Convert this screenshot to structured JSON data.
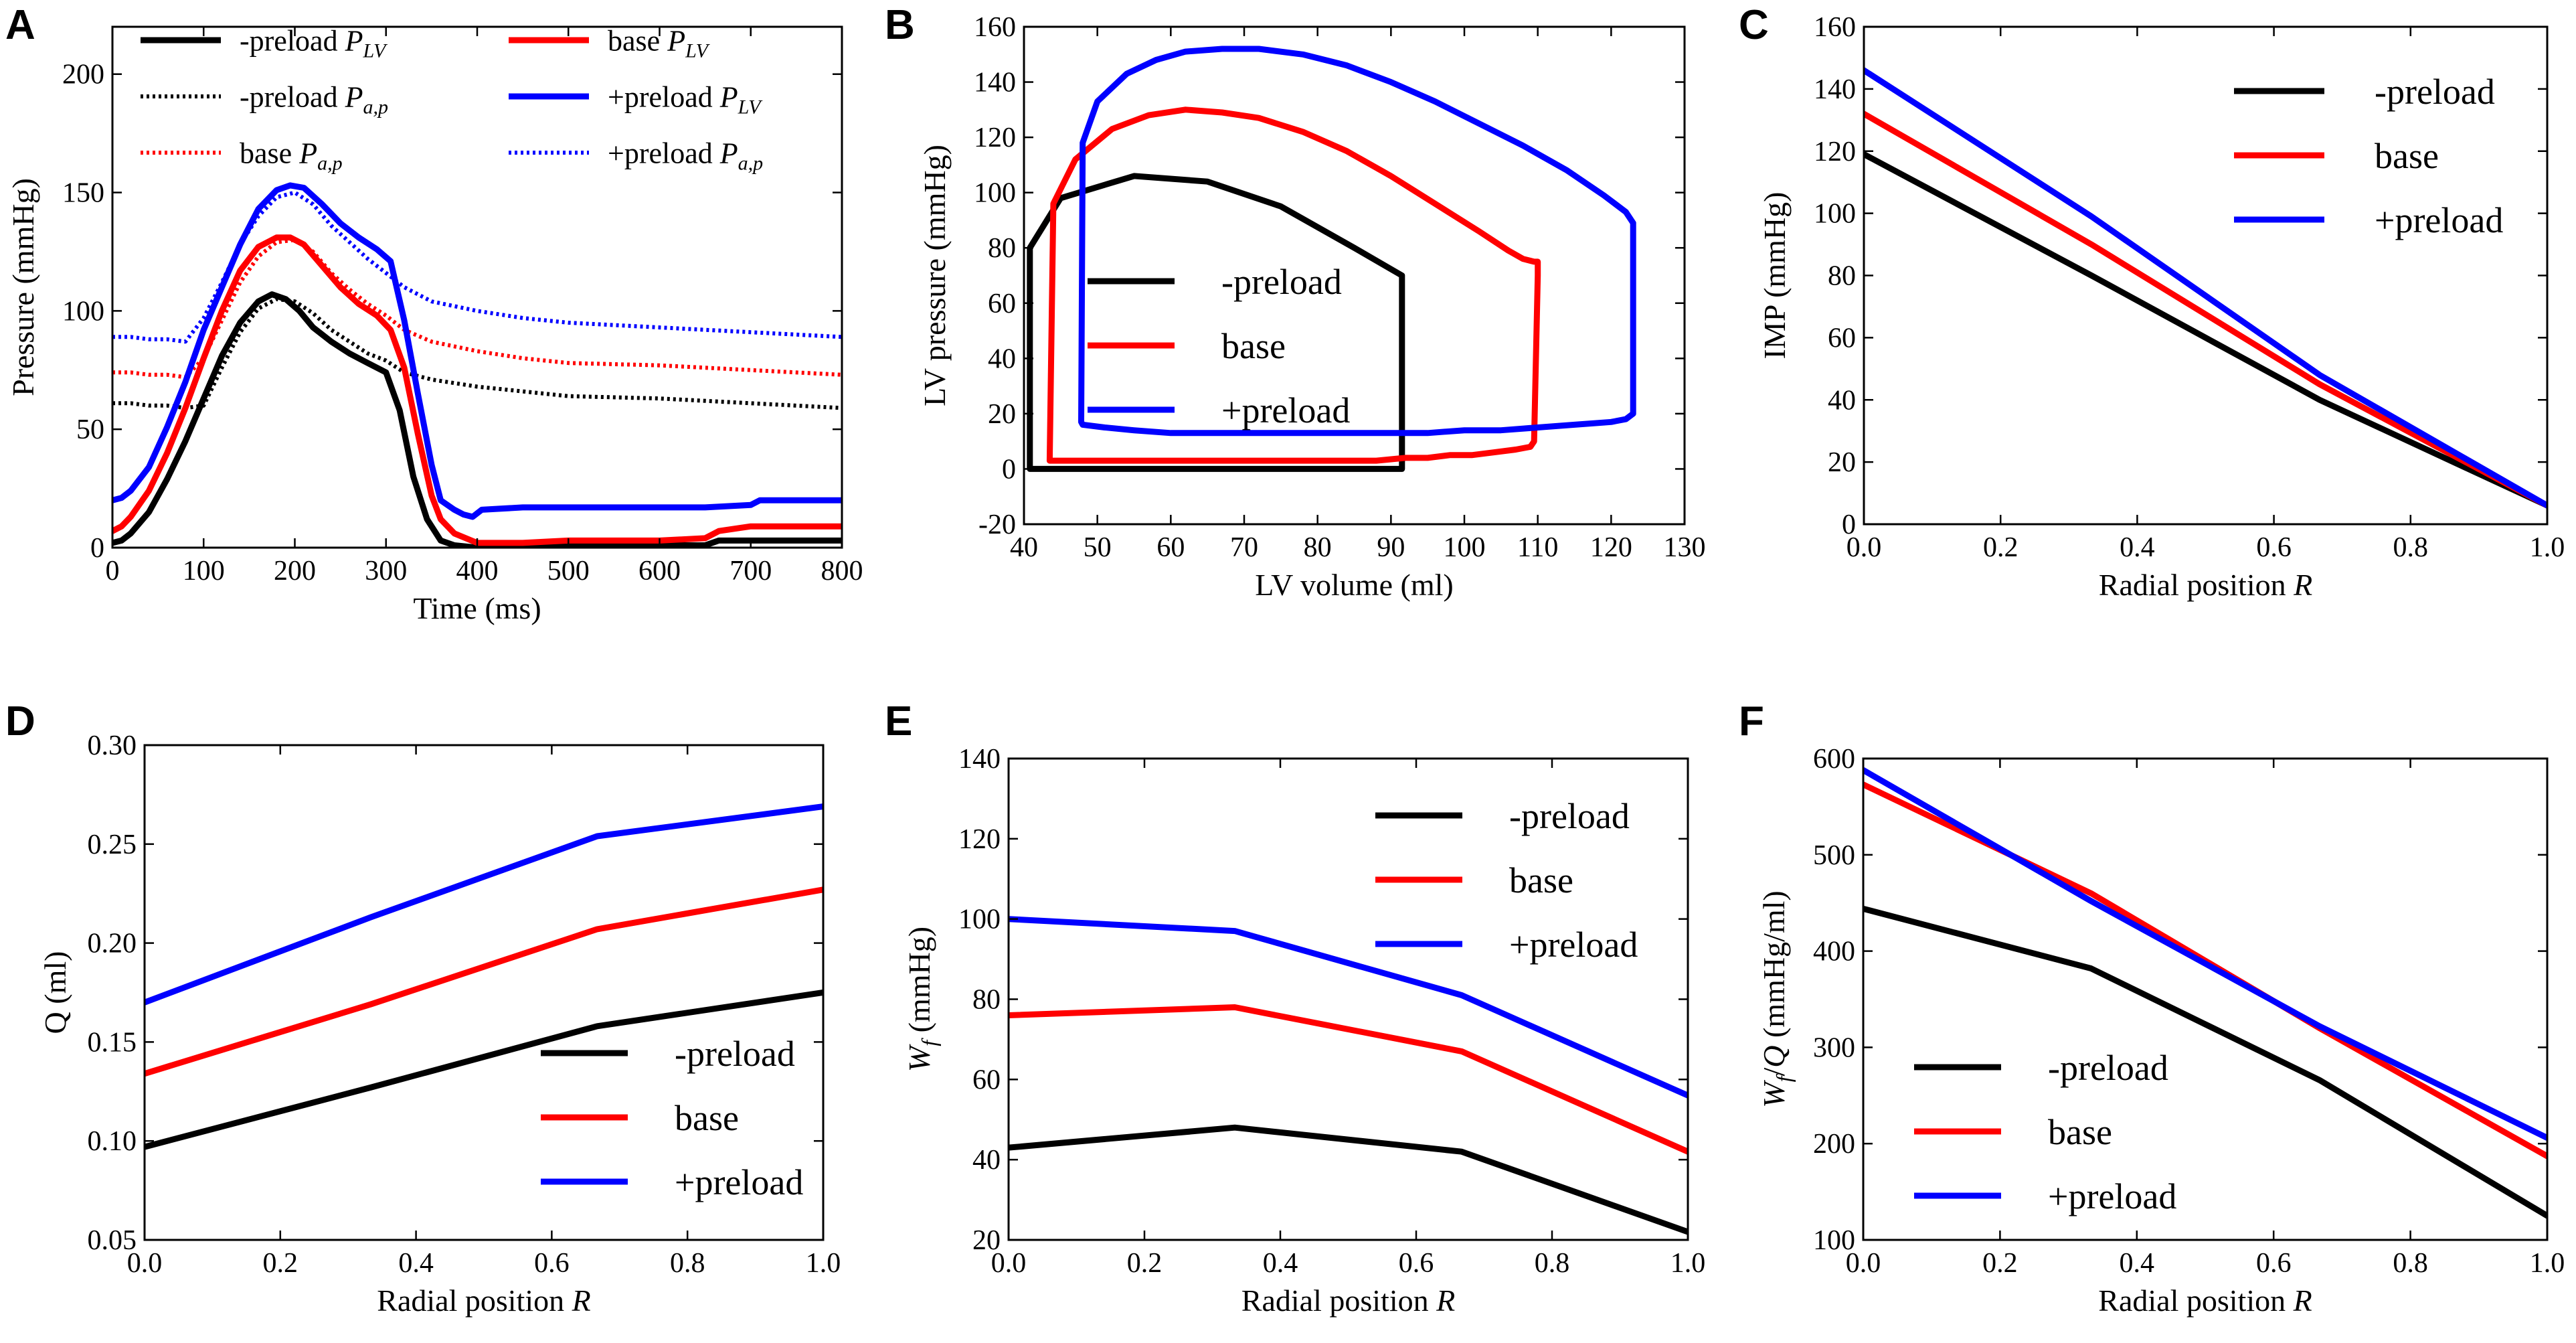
{
  "colors": {
    "black": "#000000",
    "red": "#ff0000",
    "blue": "#0000ff"
  },
  "chart_data": [
    {
      "id": "A",
      "label": "A",
      "type": "line",
      "xlabel": "Time (ms)",
      "ylabel": "Pressure (mmHg)",
      "xlim": [
        0,
        800
      ],
      "ylim": [
        0,
        220
      ],
      "xticks": [
        0,
        100,
        200,
        300,
        400,
        500,
        600,
        700,
        800
      ],
      "yticks": [
        0,
        50,
        100,
        150,
        200
      ],
      "legend_position": "top",
      "legend_columns": 2,
      "series": [
        {
          "name": "-preload P_LV",
          "legend_text": "-preload ",
          "legend_sym": "P",
          "legend_sub": "LV",
          "color": "#000000",
          "dash": "solid",
          "x": [
            0,
            10,
            20,
            40,
            60,
            80,
            100,
            120,
            140,
            160,
            175,
            190,
            205,
            220,
            240,
            260,
            280,
            300,
            315,
            330,
            345,
            360,
            375,
            400,
            450,
            500,
            600,
            650,
            665,
            700,
            750,
            800
          ],
          "y": [
            2,
            3,
            6,
            15,
            29,
            45,
            63,
            81,
            95,
            104,
            107,
            105,
            100,
            93,
            87,
            82,
            78,
            74,
            58,
            30,
            12,
            3,
            1,
            0,
            0,
            1,
            1,
            1,
            3,
            3,
            3,
            3
          ]
        },
        {
          "name": "-preload P_a,p",
          "legend_text": "-preload ",
          "legend_sym": "P",
          "legend_sub": "a,p",
          "color": "#000000",
          "dash": "dotted",
          "x": [
            0,
            20,
            40,
            60,
            80,
            100,
            120,
            140,
            160,
            180,
            200,
            220,
            240,
            260,
            280,
            300,
            320,
            350,
            400,
            450,
            500,
            600,
            700,
            800
          ],
          "y": [
            61,
            61,
            60,
            60,
            59,
            60,
            76,
            91,
            101,
            105,
            104,
            99,
            92,
            87,
            82,
            79,
            74,
            71,
            68,
            66,
            64,
            63,
            61,
            59
          ]
        },
        {
          "name": "base P_LV",
          "legend_text": "base ",
          "legend_sym": "P",
          "legend_sub": "LV",
          "color": "#ff0000",
          "dash": "solid",
          "x": [
            0,
            10,
            20,
            40,
            60,
            80,
            100,
            120,
            140,
            160,
            180,
            195,
            210,
            230,
            250,
            270,
            290,
            305,
            320,
            335,
            350,
            360,
            375,
            400,
            450,
            500,
            600,
            650,
            665,
            700,
            750,
            800
          ],
          "y": [
            7,
            9,
            13,
            24,
            40,
            59,
            80,
            100,
            117,
            127,
            131,
            131,
            128,
            119,
            110,
            103,
            98,
            92,
            76,
            48,
            22,
            12,
            6,
            2,
            2,
            3,
            3,
            4,
            7,
            9,
            9,
            9
          ]
        },
        {
          "name": "base P_a,p",
          "legend_text": "base ",
          "legend_sym": "P",
          "legend_sub": "a,p",
          "color": "#ff0000",
          "dash": "dotted",
          "x": [
            0,
            20,
            40,
            60,
            80,
            100,
            120,
            140,
            160,
            180,
            200,
            220,
            240,
            260,
            280,
            300,
            320,
            350,
            400,
            450,
            500,
            600,
            700,
            800
          ],
          "y": [
            74,
            74,
            73,
            73,
            72,
            80,
            96,
            112,
            123,
            129,
            130,
            125,
            116,
            109,
            103,
            98,
            92,
            87,
            83,
            80,
            78,
            77,
            75,
            73
          ]
        },
        {
          "name": "+preload P_LV",
          "legend_text": "+preload ",
          "legend_sym": "P",
          "legend_sub": "LV",
          "color": "#0000ff",
          "dash": "solid",
          "x": [
            0,
            10,
            20,
            40,
            60,
            80,
            100,
            120,
            140,
            160,
            180,
            195,
            210,
            230,
            250,
            270,
            290,
            305,
            320,
            335,
            350,
            360,
            375,
            385,
            395,
            405,
            450,
            500,
            600,
            650,
            700,
            710,
            750,
            800
          ],
          "y": [
            20,
            21,
            24,
            34,
            51,
            70,
            92,
            110,
            128,
            143,
            151,
            153,
            152,
            145,
            137,
            131,
            126,
            121,
            96,
            65,
            35,
            20,
            16,
            14,
            13,
            16,
            17,
            17,
            17,
            17,
            18,
            20,
            20,
            20
          ]
        },
        {
          "name": "+preload P_a,p",
          "legend_text": "+preload ",
          "legend_sym": "P",
          "legend_sub": "a,p",
          "color": "#0000ff",
          "dash": "dotted",
          "x": [
            0,
            20,
            40,
            60,
            80,
            100,
            120,
            140,
            160,
            180,
            200,
            220,
            240,
            260,
            280,
            300,
            320,
            350,
            400,
            450,
            500,
            600,
            700,
            800
          ],
          "y": [
            89,
            89,
            88,
            88,
            87,
            97,
            112,
            128,
            140,
            148,
            150,
            145,
            136,
            129,
            122,
            116,
            110,
            104,
            100,
            97,
            95,
            93,
            91,
            89
          ]
        }
      ]
    },
    {
      "id": "B",
      "label": "B",
      "type": "line",
      "xlabel": "LV volume (ml)",
      "ylabel": "LV pressure (mmHg)",
      "xlim": [
        40,
        130
      ],
      "ylim": [
        -20,
        160
      ],
      "xticks": [
        40,
        50,
        60,
        70,
        80,
        90,
        100,
        110,
        120,
        130
      ],
      "yticks": [
        -20,
        0,
        20,
        40,
        60,
        80,
        100,
        120,
        140,
        160
      ],
      "legend_position": "center-left",
      "series": [
        {
          "name": "-preload",
          "legend_text": "-preload",
          "color": "#000000",
          "dash": "solid",
          "x": [
            91.5,
            91,
            90,
            88,
            86,
            84,
            82,
            80,
            78,
            75,
            72,
            69,
            66,
            63,
            60,
            57,
            55,
            52,
            49,
            46,
            44,
            42,
            41,
            40.8,
            40.8,
            45,
            55,
            65,
            75,
            85,
            91.5,
            91.5
          ],
          "y": [
            0,
            0,
            0,
            0,
            0,
            0,
            0,
            0,
            0,
            0,
            0,
            0,
            0,
            0,
            0,
            0,
            0,
            0,
            0,
            0,
            0,
            0,
            0,
            0,
            80,
            98,
            106,
            104,
            95,
            80,
            70,
            0
          ]
        },
        {
          "name": "base",
          "legend_text": "base",
          "color": "#ff0000",
          "dash": "solid",
          "x": [
            110,
            110,
            109.5,
            109,
            107,
            104,
            101,
            98,
            95,
            92,
            88,
            84,
            80,
            76,
            72,
            68,
            64,
            60,
            56,
            52,
            48,
            44.5,
            43.5,
            43.5,
            44,
            47,
            52,
            57,
            62,
            67,
            72,
            78,
            84,
            90,
            96,
            102,
            106,
            108,
            109.5,
            110
          ],
          "y": [
            75,
            70,
            10,
            8,
            7,
            6,
            5,
            5,
            4,
            4,
            3,
            3,
            3,
            3,
            3,
            3,
            3,
            3,
            3,
            3,
            3,
            3,
            3,
            3,
            96,
            112,
            123,
            128,
            130,
            129,
            127,
            122,
            115,
            106,
            96,
            86,
            79,
            76,
            75,
            75
          ]
        },
        {
          "name": "+preload",
          "legend_text": "+preload",
          "color": "#0000ff",
          "dash": "solid",
          "x": [
            123,
            123,
            122,
            120,
            115,
            110,
            105,
            100,
            95,
            90,
            85,
            80,
            75,
            70,
            65,
            60,
            55,
            51,
            48,
            47.8,
            48,
            50,
            54,
            58,
            62,
            67,
            72,
            78,
            84,
            90,
            96,
            102,
            108,
            114,
            119,
            122,
            123
          ],
          "y": [
            89,
            20,
            18,
            17,
            16,
            15,
            14,
            14,
            13,
            13,
            13,
            13,
            13,
            13,
            13,
            13,
            14,
            15,
            16,
            17,
            118,
            133,
            143,
            148,
            151,
            152,
            152,
            150,
            146,
            140,
            133,
            125,
            117,
            108,
            99,
            93,
            89
          ]
        }
      ]
    },
    {
      "id": "C",
      "label": "C",
      "type": "line",
      "xlabel_text": "Radial position ",
      "xlabel_sym": "R",
      "ylabel": "IMP (mmHg)",
      "xlim": [
        0,
        1
      ],
      "ylim": [
        0,
        160
      ],
      "xticks": [
        0.0,
        0.2,
        0.4,
        0.6,
        0.8,
        1.0
      ],
      "xtick_labels": [
        "0.0",
        "0.2",
        "0.4",
        "0.6",
        "0.8",
        "1.0"
      ],
      "yticks": [
        0,
        20,
        40,
        60,
        80,
        100,
        120,
        140,
        160
      ],
      "legend_position": "top-right",
      "series": [
        {
          "name": "-preload",
          "legend_text": "-preload",
          "color": "#000000",
          "dash": "solid",
          "x": [
            0,
            0.333,
            0.667,
            1
          ],
          "y": [
            119,
            80,
            40,
            6
          ]
        },
        {
          "name": "base",
          "legend_text": "base",
          "color": "#ff0000",
          "dash": "solid",
          "x": [
            0,
            0.333,
            0.667,
            1
          ],
          "y": [
            132,
            90,
            45,
            6
          ]
        },
        {
          "name": "+preload",
          "legend_text": "+preload",
          "color": "#0000ff",
          "dash": "solid",
          "x": [
            0,
            0.333,
            0.667,
            1
          ],
          "y": [
            146,
            99,
            48,
            6
          ]
        }
      ]
    },
    {
      "id": "D",
      "label": "D",
      "type": "line",
      "xlabel_text": "Radial position ",
      "xlabel_sym": "R",
      "ylabel": "Q (ml)",
      "xlim": [
        0,
        1
      ],
      "ylim": [
        0.05,
        0.3
      ],
      "xticks": [
        0.0,
        0.2,
        0.4,
        0.6,
        0.8,
        1.0
      ],
      "xtick_labels": [
        "0.0",
        "0.2",
        "0.4",
        "0.6",
        "0.8",
        "1.0"
      ],
      "yticks": [
        0.05,
        0.1,
        0.15,
        0.2,
        0.25,
        0.3
      ],
      "ytick_labels": [
        "0.05",
        "0.10",
        "0.15",
        "0.20",
        "0.25",
        "0.30"
      ],
      "legend_position": "bottom-right",
      "series": [
        {
          "name": "-preload",
          "legend_text": "-preload",
          "color": "#000000",
          "dash": "solid",
          "x": [
            0,
            0.333,
            0.667,
            1
          ],
          "y": [
            0.097,
            0.127,
            0.158,
            0.175
          ]
        },
        {
          "name": "base",
          "legend_text": "base",
          "color": "#ff0000",
          "dash": "solid",
          "x": [
            0,
            0.333,
            0.667,
            1
          ],
          "y": [
            0.134,
            0.169,
            0.207,
            0.227
          ]
        },
        {
          "name": "+preload",
          "legend_text": "+preload",
          "color": "#0000ff",
          "dash": "solid",
          "x": [
            0,
            0.333,
            0.667,
            1
          ],
          "y": [
            0.17,
            0.213,
            0.254,
            0.269
          ]
        }
      ]
    },
    {
      "id": "E",
      "label": "E",
      "type": "line",
      "xlabel_text": "Radial position ",
      "xlabel_sym": "R",
      "ylabel_sym": "W",
      "ylabel_sub": "f",
      "ylabel_text": " (mmHg)",
      "xlim": [
        0,
        1
      ],
      "ylim": [
        20,
        140
      ],
      "xticks": [
        0.0,
        0.2,
        0.4,
        0.6,
        0.8,
        1.0
      ],
      "xtick_labels": [
        "0.0",
        "0.2",
        "0.4",
        "0.6",
        "0.8",
        "1.0"
      ],
      "yticks": [
        20,
        40,
        60,
        80,
        100,
        120,
        140
      ],
      "legend_position": "top-right",
      "series": [
        {
          "name": "-preload",
          "legend_text": "-preload",
          "color": "#000000",
          "dash": "solid",
          "x": [
            0,
            0.333,
            0.667,
            1
          ],
          "y": [
            43,
            48,
            42,
            22
          ]
        },
        {
          "name": "base",
          "legend_text": "base",
          "color": "#ff0000",
          "dash": "solid",
          "x": [
            0,
            0.333,
            0.667,
            1
          ],
          "y": [
            76,
            78,
            67,
            42
          ]
        },
        {
          "name": "+preload",
          "legend_text": "+preload",
          "color": "#0000ff",
          "dash": "solid",
          "x": [
            0,
            0.333,
            0.667,
            1
          ],
          "y": [
            100,
            97,
            81,
            56
          ]
        }
      ]
    },
    {
      "id": "F",
      "label": "F",
      "type": "line",
      "xlabel_text": "Radial position ",
      "xlabel_sym": "R",
      "ylabel_sym": "W",
      "ylabel_sub": "f",
      "ylabel_mid": "/",
      "ylabel_sym2": "Q",
      "ylabel_text": " (mmHg/ml)",
      "xlim": [
        0,
        1
      ],
      "ylim": [
        100,
        600
      ],
      "xticks": [
        0.0,
        0.2,
        0.4,
        0.6,
        0.8,
        1.0
      ],
      "xtick_labels": [
        "0.0",
        "0.2",
        "0.4",
        "0.6",
        "0.8",
        "1.0"
      ],
      "yticks": [
        100,
        200,
        300,
        400,
        500,
        600
      ],
      "legend_position": "bottom-left",
      "series": [
        {
          "name": "-preload",
          "legend_text": "-preload",
          "color": "#000000",
          "dash": "solid",
          "x": [
            0,
            0.333,
            0.667,
            1
          ],
          "y": [
            444,
            382,
            266,
            125
          ]
        },
        {
          "name": "base",
          "legend_text": "base",
          "color": "#ff0000",
          "dash": "solid",
          "x": [
            0,
            0.333,
            0.667,
            1
          ],
          "y": [
            573,
            460,
            320,
            187
          ]
        },
        {
          "name": "+preload",
          "legend_text": "+preload",
          "color": "#0000ff",
          "dash": "solid",
          "x": [
            0,
            0.333,
            0.667,
            1
          ],
          "y": [
            588,
            452,
            322,
            206
          ]
        }
      ]
    }
  ]
}
